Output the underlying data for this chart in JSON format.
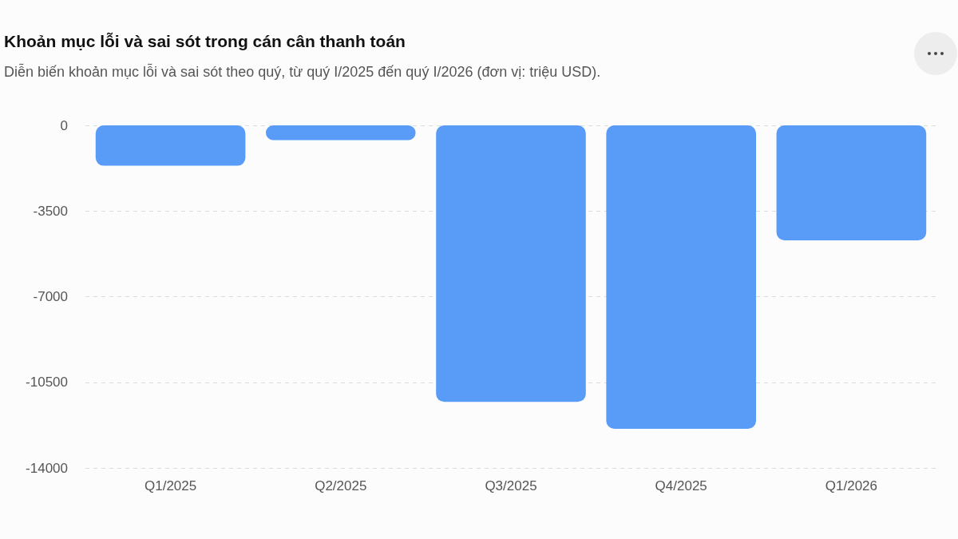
{
  "chart_data": {
    "type": "bar",
    "title": "Khoản mục lỗi và sai sót trong cán cân thanh toán",
    "subtitle": "Diễn biến khoản mục lỗi và sai sót theo quý, từ quý I/2025 đến quý I/2026 (đơn vị: triệu USD).",
    "categories": [
      "Q1/2025",
      "Q2/2025",
      "Q3/2025",
      "Q4/2025",
      "Q1/2026"
    ],
    "values": [
      -1650,
      -600,
      -11300,
      -12400,
      -4700
    ],
    "color": "#589cf7",
    "ylim": [
      -14000,
      0
    ],
    "yticks": [
      0,
      -3500,
      -7000,
      -10500,
      -14000
    ],
    "grid": "y"
  }
}
